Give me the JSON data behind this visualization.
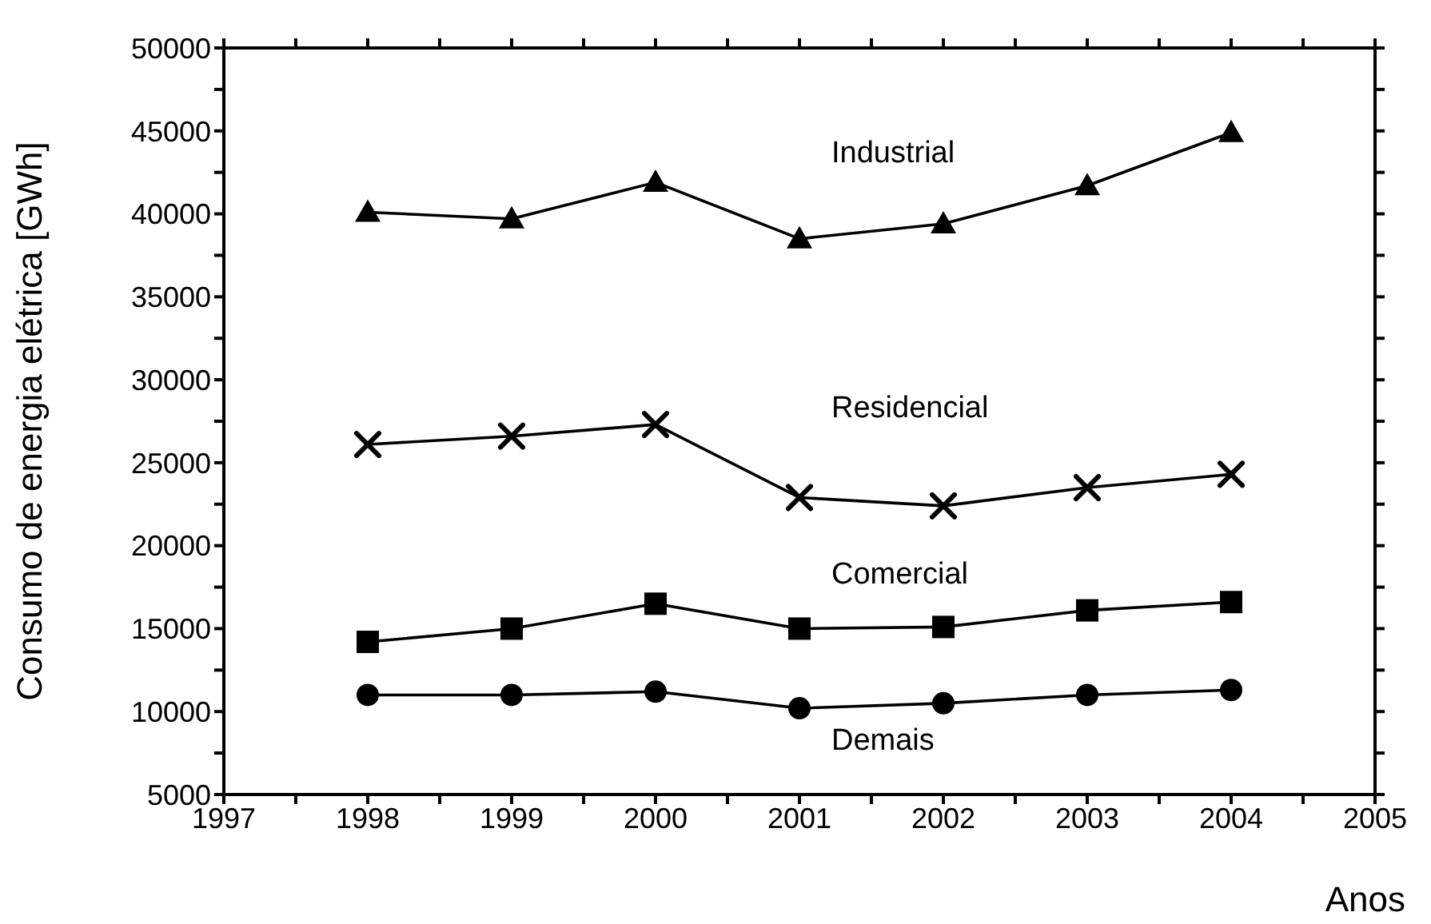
{
  "chart_data": {
    "type": "line",
    "xlabel": "Anos",
    "ylabel": "Consumo de energia elétrica [GWh]",
    "x": [
      1998,
      1999,
      2000,
      2001,
      2002,
      2003,
      2004
    ],
    "series": [
      {
        "name": "Industrial",
        "color": "#000000",
        "marker": "triangle",
        "values": [
          40100,
          39700,
          41900,
          38500,
          39400,
          41700,
          44900
        ]
      },
      {
        "name": "Residencial",
        "color": "#000000",
        "marker": "cross",
        "values": [
          26100,
          26600,
          27300,
          22900,
          22400,
          23500,
          24300
        ]
      },
      {
        "name": "Comercial",
        "color": "#000000",
        "marker": "square",
        "values": [
          14200,
          15000,
          16500,
          15000,
          15100,
          16100,
          16600
        ]
      },
      {
        "name": "Demais",
        "color": "#000000",
        "marker": "circle",
        "values": [
          11000,
          11000,
          11200,
          10200,
          10500,
          11000,
          11300
        ]
      }
    ],
    "xlim": [
      1997,
      2005
    ],
    "xticks": [
      1997,
      {
        "value": 1997.5,
        "label": null
      },
      1998,
      {
        "value": 1998.5,
        "label": null
      },
      1999,
      {
        "value": 1999.5,
        "label": null
      },
      2000,
      {
        "value": 2000.5,
        "label": null
      },
      2001,
      {
        "value": 2001.5,
        "label": null
      },
      2002,
      {
        "value": 2002.5,
        "label": null
      },
      2003,
      {
        "value": 2003.5,
        "label": null
      },
      2004,
      {
        "value": 2004.5,
        "label": null
      },
      2005
    ],
    "ylim": [
      5000,
      50000
    ],
    "yticks": [
      5000,
      {
        "value": 7500,
        "label": null
      },
      10000,
      {
        "value": 12500,
        "label": null
      },
      15000,
      {
        "value": 17500,
        "label": null
      },
      20000,
      {
        "value": 22500,
        "label": null
      },
      25000,
      {
        "value": 27500,
        "label": null
      },
      30000,
      {
        "value": 32500,
        "label": null
      },
      35000,
      {
        "value": 37500,
        "label": null
      },
      40000,
      {
        "value": 42500,
        "label": null
      },
      45000,
      {
        "value": 47500,
        "label": null
      },
      50000
    ],
    "grid": false,
    "legend": false,
    "line_style": "solid"
  }
}
